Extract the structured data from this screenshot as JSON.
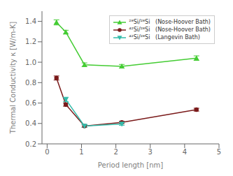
{
  "chart_data": {
    "type": "line",
    "xlabel": "Period length [nm]",
    "ylabel": "Thermal Conductivity κ [W/m-K]",
    "series": [
      {
        "name": "²⁸Si/²⁸Si   (Nose-Hoover Bath)",
        "color": "#44cc33",
        "marker": "triangle-up",
        "line_style": "solid",
        "x": [
          0.2715,
          0.543,
          1.086,
          2.172,
          4.344
        ],
        "values": [
          1.39,
          1.295,
          0.975,
          0.96,
          1.04
        ],
        "errors": [
          0.025,
          0.018,
          0.018,
          0.018,
          0.022
        ]
      },
      {
        "name": "⁴²Si/²⁸Si   (Nose-Hoover Bath)",
        "color": "#7a1a1a",
        "marker": "circle",
        "line_style": "solid",
        "x": [
          0.2715,
          0.543,
          1.086,
          2.172,
          4.344
        ],
        "values": [
          0.845,
          0.585,
          0.375,
          0.41,
          0.535
        ],
        "errors": [
          0.02,
          0.016,
          0.012,
          0.012,
          0.014
        ]
      },
      {
        "name": "⁴²Si/²⁸Si   (Langevin Bath)",
        "color": "#33bbaa",
        "marker": "triangle-down",
        "line_style": "solid",
        "x": [
          0.543,
          1.086,
          2.172
        ],
        "values": [
          0.635,
          0.375,
          0.395
        ],
        "errors": [
          0.022,
          0.014,
          0.013
        ]
      }
    ],
    "xlim": [
      -0.15,
      5
    ],
    "ylim": [
      0.2,
      1.5
    ],
    "xticks": [
      0,
      1,
      2,
      3,
      4,
      5
    ],
    "yticks": [
      0.2,
      0.4,
      0.6,
      0.8,
      {
        "value": 1.0,
        "label": "1.0"
      },
      1.2,
      1.4
    ],
    "grid": false,
    "legend": "upper right"
  }
}
